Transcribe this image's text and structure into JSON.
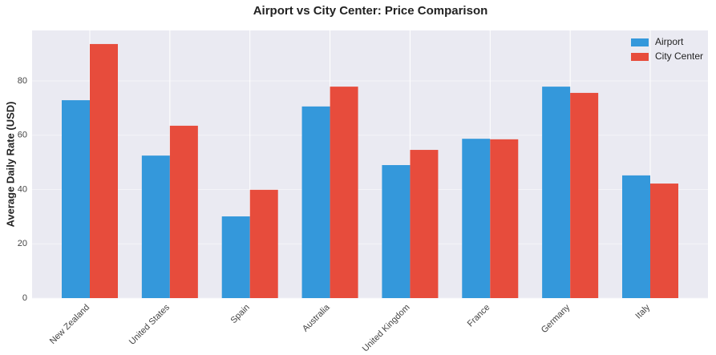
{
  "chart_data": {
    "type": "bar",
    "title": "Airport vs City Center: Price Comparison",
    "y_label": "Average Daily Rate (USD)",
    "categories": [
      "New Zealand",
      "United States",
      "Spain",
      "Australia",
      "United Kingdom",
      "France",
      "Germany",
      "Italy"
    ],
    "series": [
      {
        "name": "Airport",
        "color": "#3498db",
        "values": [
          72.9,
          52.5,
          30.1,
          70.6,
          49.0,
          58.7,
          77.9,
          45.2
        ]
      },
      {
        "name": "City Center",
        "color": "#e74c3c",
        "values": [
          93.6,
          63.5,
          39.9,
          77.9,
          54.6,
          58.5,
          75.6,
          42.2
        ]
      }
    ],
    "ylim": [
      0,
      98.6
    ],
    "yticks": [
      0,
      20,
      40,
      60,
      80
    ],
    "grid": true,
    "legend": "upper right"
  }
}
